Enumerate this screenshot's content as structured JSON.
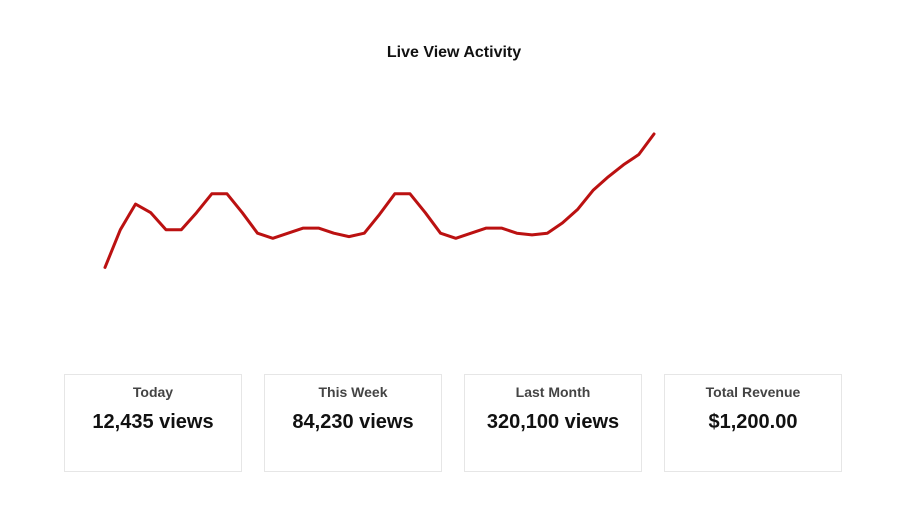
{
  "chart_data": {
    "type": "line",
    "title": "Live View Activity",
    "xlabel": "",
    "ylabel": "",
    "grid": false,
    "ylim": [
      0,
      100
    ],
    "x": [
      0,
      1,
      2,
      3,
      4,
      5,
      6,
      7,
      8,
      9,
      10,
      11,
      12,
      13,
      14,
      15,
      16,
      17,
      18,
      19,
      20,
      21,
      22,
      23,
      24,
      25,
      26,
      27,
      28,
      29,
      30,
      31,
      32,
      33,
      34,
      35,
      36
    ],
    "series": [
      {
        "values": [
          22,
          44,
          59,
          54,
          44,
          44,
          54,
          65,
          65,
          54,
          42,
          39,
          42,
          45,
          45,
          42,
          40,
          42,
          53,
          65,
          65,
          54,
          42,
          39,
          42,
          45,
          45,
          42,
          41,
          42,
          48,
          56,
          67,
          75,
          82,
          88,
          100
        ],
        "color": "#bb1111"
      }
    ]
  },
  "stats": [
    {
      "label": "Today",
      "value": "12,435 views"
    },
    {
      "label": "This Week",
      "value": "84,230 views"
    },
    {
      "label": "Last Month",
      "value": "320,100 views"
    },
    {
      "label": "Total Revenue",
      "value": "$1,200.00"
    }
  ]
}
